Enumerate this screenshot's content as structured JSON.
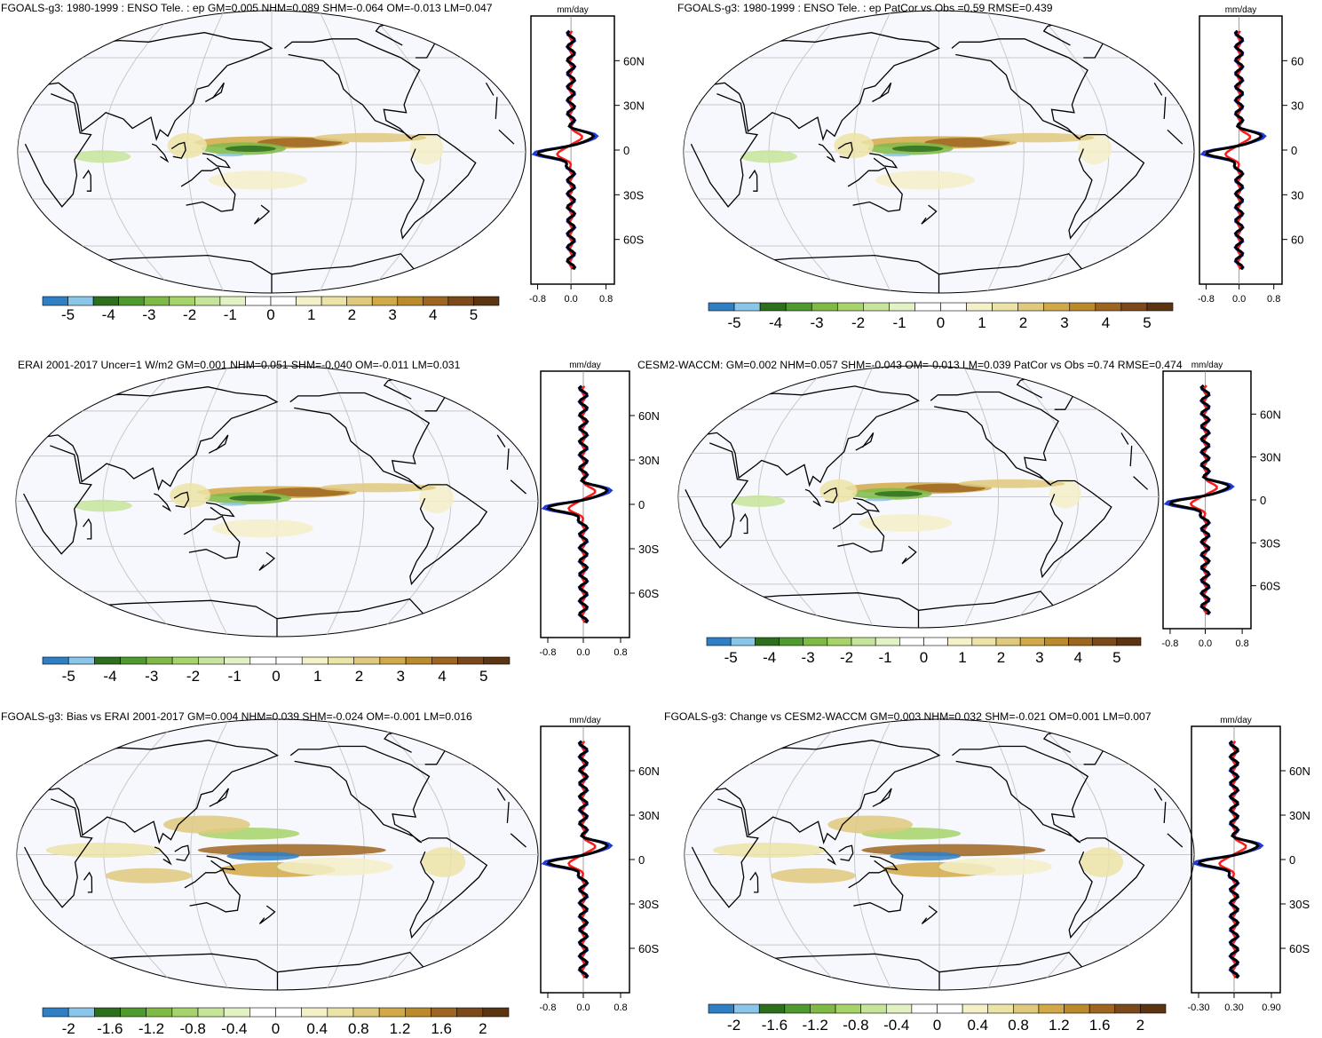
{
  "colors": {
    "diverging_scale": [
      "#2f7fc5",
      "#8ac5ea",
      "#2e6f1e",
      "#4e9a2e",
      "#7fba45",
      "#a6d46a",
      "#c7e59a",
      "#e3f2c4",
      "#ffffff",
      "#ffffff",
      "#f4f0c8",
      "#ece3a6",
      "#dfc97c",
      "#d1a948",
      "#bb8a2b",
      "#9d6520",
      "#7c4a1a",
      "#5b3412"
    ],
    "land_outline": "#000000",
    "ocean_background": "#f7f8fd",
    "gridline": "#c8c8c8",
    "line_blue": "#1f3ad6",
    "line_red": "#ff1a1a",
    "line_black": "#000000"
  },
  "chart_data": [
    {
      "type": "heatmap",
      "title": "FGOALS-g3: 1980-1999 : ENSO Tele. : ep GM=0.005 NHM=0.089 SHM=-0.064 OM=-0.013 LM=0.047",
      "colorbar_ticks": [
        "-5",
        "-4",
        "-3",
        "-2",
        "-1",
        "0",
        "1",
        "2",
        "3",
        "4",
        "5"
      ],
      "profile": {
        "unit": "mm/day",
        "lat_ticks": [
          "60N",
          "30N",
          "0",
          "30S",
          "60S"
        ],
        "x_ticks": [
          "-0.8",
          "0.0",
          "0.8"
        ]
      }
    },
    {
      "type": "heatmap",
      "title": "FGOALS-g3: 1980-1999 : ENSO Tele. : ep PatCor vs Obs =0.59 RMSE=0.439",
      "colorbar_ticks": [
        "-5",
        "-4",
        "-3",
        "-2",
        "-1",
        "0",
        "1",
        "2",
        "3",
        "4",
        "5"
      ],
      "profile": {
        "unit": "mm/day",
        "lat_ticks": [
          "60",
          "30",
          "0",
          "30",
          "60"
        ],
        "x_ticks": [
          "-0.8",
          "0.0",
          "0.8"
        ]
      }
    },
    {
      "type": "heatmap",
      "title": "ERAI 2001-2017 Uncer=1 W/m2 GM=0.001 NHM=0.051 SHM=-0.040 OM=-0.011 LM=0.031",
      "colorbar_ticks": [
        "-5",
        "-4",
        "-3",
        "-2",
        "-1",
        "0",
        "1",
        "2",
        "3",
        "4",
        "5"
      ],
      "profile": {
        "unit": "mm/day",
        "lat_ticks": [
          "60N",
          "30N",
          "0",
          "30S",
          "60S"
        ],
        "x_ticks": [
          "-0.8",
          "0.0",
          "0.8"
        ]
      }
    },
    {
      "type": "heatmap",
      "title": "CESM2-WACCM: GM=0.002 NHM=0.057 SHM=-0.043 OM=-0.013 LM=0.039 PatCor vs Obs =0.74 RMSE=0.474",
      "colorbar_ticks": [
        "-5",
        "-4",
        "-3",
        "-2",
        "-1",
        "0",
        "1",
        "2",
        "3",
        "4",
        "5"
      ],
      "profile": {
        "unit": "mm/day",
        "lat_ticks": [
          "60N",
          "30N",
          "0",
          "30S",
          "60S"
        ],
        "x_ticks": [
          "-0.8",
          "0.0",
          "0.8"
        ]
      }
    },
    {
      "type": "heatmap",
      "title": "FGOALS-g3: Bias vs ERAI 2001-2017 GM=0.004 NHM=0.039 SHM=-0.024 OM=-0.001 LM=0.016",
      "colorbar_ticks": [
        "-2",
        "-1.6",
        "-1.2",
        "-0.8",
        "-0.4",
        "0",
        "0.4",
        "0.8",
        "1.2",
        "1.6",
        "2"
      ],
      "profile": {
        "unit": "mm/day",
        "lat_ticks": [
          "60N",
          "30N",
          "0",
          "30S",
          "60S"
        ],
        "x_ticks": [
          "-0.8",
          "0.0",
          "0.8"
        ]
      }
    },
    {
      "type": "heatmap",
      "title": "FGOALS-g3: Change vs CESM2-WACCM GM=0.003 NHM=0.032 SHM=-0.021 OM=0.001 LM=0.007",
      "colorbar_ticks": [
        "-2",
        "-1.6",
        "-1.2",
        "-0.8",
        "-0.4",
        "0",
        "0.4",
        "0.8",
        "1.2",
        "1.6",
        "2"
      ],
      "profile": {
        "unit": "mm/day",
        "lat_ticks": [
          "60N",
          "30N",
          "0",
          "30S",
          "60S"
        ],
        "x_ticks": [
          "-0.30",
          "0.30",
          "0.90"
        ]
      }
    }
  ]
}
